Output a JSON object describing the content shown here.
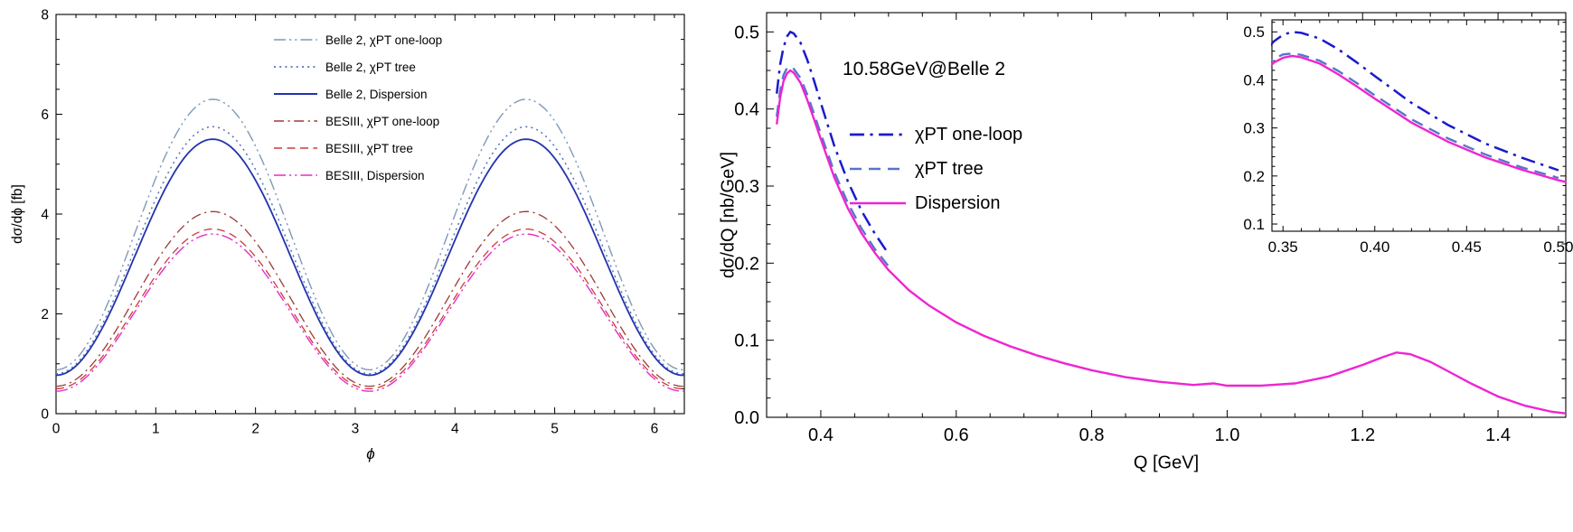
{
  "page": {
    "background": "#ffffff"
  },
  "chart_data": [
    {
      "id": "left",
      "type": "line",
      "title": "",
      "xlabel": "ϕ",
      "ylabel": "dσ/dϕ [fb]",
      "xlim": [
        0,
        6.3
      ],
      "ylim": [
        0,
        8
      ],
      "xticks": [
        0,
        1,
        2,
        3,
        4,
        5,
        6
      ],
      "xtick_labels": [
        "0",
        "1",
        "2",
        "3",
        "4",
        "5",
        "6"
      ],
      "yticks": [
        0,
        2,
        4,
        6,
        8
      ],
      "ytick_labels": [
        "0",
        "2",
        "4",
        "6",
        "8"
      ],
      "x_minor_step": 0.2,
      "y_minor_step": 0.5,
      "grid": false,
      "frame": true,
      "legend_position": "top-center-inside",
      "curve_model": "y(ϕ) = y_min + (y_max − y_min)·sin²(ϕ), peaks at ϕ = π/2 and 3π/2",
      "series": [
        {
          "name": "Belle 2, χPT one-loop",
          "color": "#7e99b9",
          "dash": "dashdotdot",
          "width": 1.4,
          "y_min": 0.88,
          "y_max": 6.3
        },
        {
          "name": "Belle 2, χPT tree",
          "color": "#5274b8",
          "dash": "dotted",
          "width": 1.5,
          "y_min": 0.8,
          "y_max": 5.75
        },
        {
          "name": "Belle 2, Dispersion",
          "color": "#2333ad",
          "dash": "solid",
          "width": 1.8,
          "y_min": 0.77,
          "y_max": 5.5
        },
        {
          "name": "BESIII, χPT one-loop",
          "color": "#9e3a36",
          "dash": "dashdot",
          "width": 1.3,
          "y_min": 0.55,
          "y_max": 4.05
        },
        {
          "name": "BESIII, χPT tree",
          "color": "#cd3a3a",
          "dash": "dashed",
          "width": 1.3,
          "y_min": 0.5,
          "y_max": 3.7
        },
        {
          "name": "BESIII, Dispersion",
          "color": "#e52cc7",
          "dash": "dashdotdot",
          "width": 1.4,
          "y_min": 0.45,
          "y_max": 3.6
        }
      ]
    },
    {
      "id": "right",
      "type": "line",
      "title": "",
      "annotation": "10.58GeV@Belle 2",
      "xlabel": "Q [GeV]",
      "ylabel": "dσ/dQ [nb/GeV]",
      "xlim": [
        0.32,
        1.5
      ],
      "ylim": [
        0,
        0.525
      ],
      "xticks": [
        0.4,
        0.6,
        0.8,
        1.0,
        1.2,
        1.4
      ],
      "xtick_labels": [
        "0.4",
        "0.6",
        "0.8",
        "1.0",
        "1.2",
        "1.4"
      ],
      "yticks": [
        0.0,
        0.1,
        0.2,
        0.3,
        0.4,
        0.5
      ],
      "ytick_labels": [
        "0.0",
        "0.1",
        "0.2",
        "0.3",
        "0.4",
        "0.5"
      ],
      "x_minor_step": 0.05,
      "y_minor_step": 0.025,
      "grid": false,
      "frame": true,
      "legend_position": "center-left-inside",
      "series": [
        {
          "name": "χPT one-loop",
          "color": "#1b1bcb",
          "dash": "dashdot",
          "width": 2.5,
          "x": [
            0.335,
            0.34,
            0.345,
            0.35,
            0.355,
            0.36,
            0.37,
            0.38,
            0.39,
            0.4,
            0.42,
            0.44,
            0.46,
            0.48,
            0.5
          ],
          "y": [
            0.42,
            0.458,
            0.48,
            0.494,
            0.5,
            0.498,
            0.486,
            0.464,
            0.437,
            0.408,
            0.352,
            0.306,
            0.268,
            0.238,
            0.212
          ]
        },
        {
          "name": "χPT tree",
          "color": "#5a74ca",
          "dash": "dashed",
          "width": 2.4,
          "x": [
            0.335,
            0.34,
            0.345,
            0.35,
            0.355,
            0.36,
            0.37,
            0.38,
            0.39,
            0.4,
            0.42,
            0.44,
            0.46,
            0.48,
            0.5
          ],
          "y": [
            0.39,
            0.424,
            0.444,
            0.453,
            0.455,
            0.452,
            0.44,
            0.419,
            0.394,
            0.368,
            0.318,
            0.278,
            0.245,
            0.218,
            0.196
          ]
        },
        {
          "name": "Dispersion",
          "color": "#ee25d2",
          "dash": "solid",
          "width": 2.4,
          "x": [
            0.335,
            0.34,
            0.345,
            0.35,
            0.355,
            0.36,
            0.37,
            0.38,
            0.39,
            0.4,
            0.42,
            0.44,
            0.46,
            0.48,
            0.5,
            0.53,
            0.56,
            0.6,
            0.64,
            0.68,
            0.72,
            0.76,
            0.8,
            0.85,
            0.9,
            0.95,
            0.98,
            1.0,
            1.05,
            1.1,
            1.15,
            1.2,
            1.23,
            1.25,
            1.27,
            1.3,
            1.33,
            1.36,
            1.4,
            1.44,
            1.48,
            1.5
          ],
          "y": [
            0.38,
            0.415,
            0.436,
            0.446,
            0.45,
            0.447,
            0.434,
            0.412,
            0.387,
            0.361,
            0.311,
            0.271,
            0.239,
            0.213,
            0.191,
            0.165,
            0.145,
            0.123,
            0.106,
            0.092,
            0.08,
            0.07,
            0.061,
            0.052,
            0.046,
            0.042,
            0.044,
            0.041,
            0.041,
            0.044,
            0.053,
            0.068,
            0.078,
            0.084,
            0.082,
            0.072,
            0.058,
            0.044,
            0.027,
            0.015,
            0.007,
            0.005
          ]
        }
      ],
      "inset": {
        "xlim": [
          0.344,
          0.504
        ],
        "ylim": [
          0.085,
          0.525
        ],
        "xticks": [
          0.35,
          0.4,
          0.45,
          0.5
        ],
        "xtick_labels": [
          "0.35",
          "0.40",
          "0.45",
          "0.50"
        ],
        "yticks": [
          0.1,
          0.2,
          0.3,
          0.4,
          0.5
        ],
        "ytick_labels": [
          "0.1",
          "0.2",
          "0.3",
          "0.4",
          "0.5"
        ],
        "x_minor_step": 0.01,
        "y_minor_step": 0.02,
        "note": "zoom of peak region, same three series"
      }
    }
  ]
}
